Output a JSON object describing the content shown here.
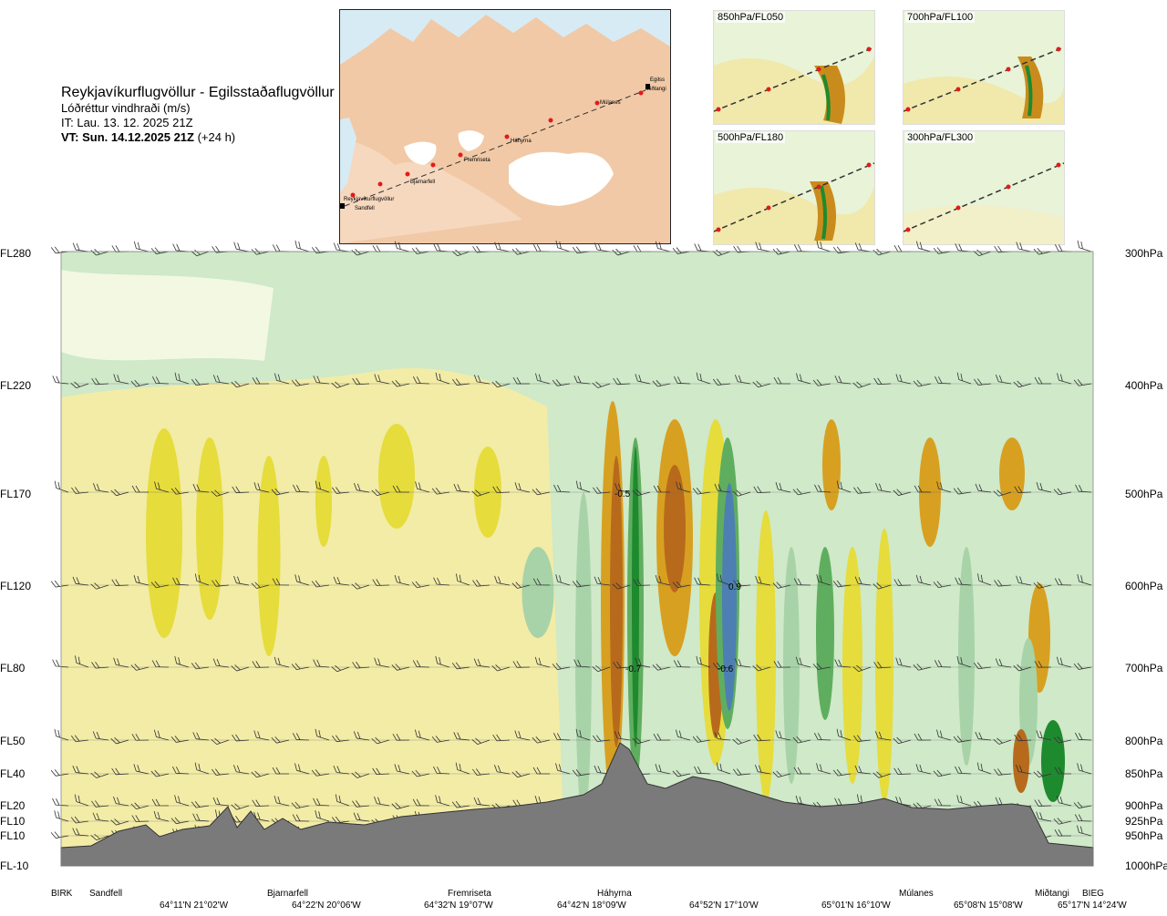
{
  "header": {
    "route": "Reykjavíkurflugvöllur - Egilsstaðaflugvöllur",
    "parameter": "Lóðréttur vindhraði (m/s)",
    "issue_time": "IT: Lau. 13. 12. 2025 21Z",
    "valid_prefix": "VT: Sun. 14.12.2025 21Z",
    "valid_suffix": " (+24 h)"
  },
  "map": {
    "stations": [
      "Reykjavíkurflugvöllur",
      "Sandfell",
      "Bjarnarfell",
      "Fremriseta",
      "Háhyrna",
      "Múlanes",
      "Egilss",
      "Miðtangi"
    ]
  },
  "thumbnails": [
    {
      "label": "850hPa/FL050"
    },
    {
      "label": "700hPa/FL100"
    },
    {
      "label": "500hPa/FL180"
    },
    {
      "label": "300hPa/FL300"
    }
  ],
  "chart_data": {
    "type": "heatmap",
    "title": "Lóðréttur vindhraði (m/s)",
    "left_axis_labels": [
      "FL280",
      "FL220",
      "FL170",
      "FL120",
      "FL80",
      "FL50",
      "FL40",
      "FL20",
      "FL10",
      "FL10",
      "FL-10"
    ],
    "right_axis_labels": [
      "300hPa",
      "400hPa",
      "500hPa",
      "600hPa",
      "700hPa",
      "800hPa",
      "850hPa",
      "900hPa",
      "925hPa",
      "950hPa",
      "1000hPa"
    ],
    "pressure_levels_hpa": [
      300,
      400,
      500,
      600,
      700,
      800,
      850,
      900,
      925,
      950,
      1000
    ],
    "stations": [
      "BIRK",
      "Sandfell",
      "Bjarnarfell",
      "Fremriseta",
      "Háhyrna",
      "Múlanes",
      "Miðtangi",
      "BIEG"
    ],
    "coordinates": [
      "64°11'N 21°02'W",
      "64°22'N 20°06'W",
      "64°32'N 19°07'W",
      "64°42'N 18°09'W",
      "64°52'N 17°10'W",
      "65°01'N 16°10'W",
      "65°08'N 15°08'W",
      "65°17'N 14°24'W"
    ],
    "annotations": [
      "-0.5",
      "-0.7",
      "0.9",
      "-0.6"
    ],
    "colors": {
      "strong_down": "#b86a1c",
      "down": "#d8a020",
      "weak_down": "#e6dc3c",
      "slight_down": "#f2eca6",
      "neutral": "#fbfbe8",
      "slight_up": "#cfe9c9",
      "weak_up": "#a8d3a8",
      "up": "#5fae5f",
      "strong_up": "#1e8a2e",
      "max_up": "#4d7fb2",
      "terrain": "#7a7a7a"
    }
  }
}
